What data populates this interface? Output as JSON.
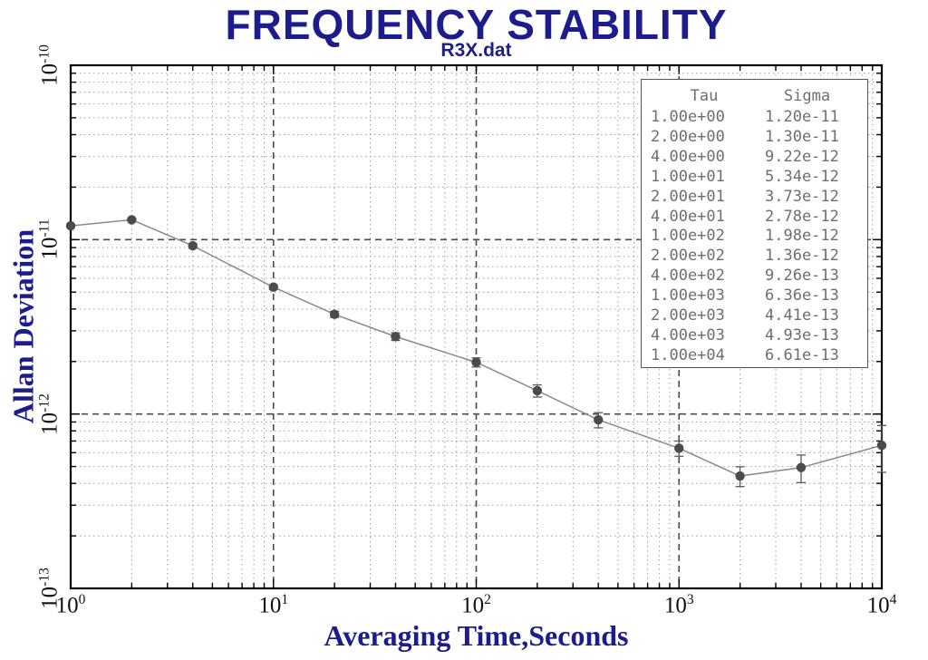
{
  "chart_data": {
    "type": "line",
    "title": "FREQUENCY STABILITY",
    "subtitle": "R3X.dat",
    "xlabel": "Averaging Time,Seconds",
    "ylabel": "Allan Deviation",
    "x_scale": "log",
    "y_scale": "log",
    "xlim": [
      1,
      10000
    ],
    "ylim": [
      1e-13,
      1e-10
    ],
    "x_tick_exponents": [
      0,
      1,
      2,
      3,
      4
    ],
    "y_tick_exponents": [
      -10,
      -11,
      -12,
      -13
    ],
    "grid": {
      "major": "dashed",
      "minor": "dotted"
    },
    "legend_position": "top-right",
    "series": [
      {
        "name": "allan-deviation",
        "marker": "circle",
        "x": [
          1,
          2,
          4,
          10,
          20,
          40,
          100,
          200,
          400,
          1000,
          2000,
          4000,
          10000
        ],
        "y": [
          1.2e-11,
          1.3e-11,
          9.22e-12,
          5.34e-12,
          3.73e-12,
          2.78e-12,
          1.98e-12,
          1.36e-12,
          9.26e-13,
          6.36e-13,
          4.41e-13,
          4.93e-13,
          6.61e-13
        ],
        "y_err_rel": [
          0.02,
          0.02,
          0.03,
          0.03,
          0.04,
          0.05,
          0.06,
          0.08,
          0.1,
          0.1,
          0.13,
          0.18,
          0.3
        ]
      }
    ],
    "legend_table": {
      "headers": [
        "Tau",
        "Sigma"
      ],
      "rows": [
        [
          "1.00e+00",
          "1.20e-11"
        ],
        [
          "2.00e+00",
          "1.30e-11"
        ],
        [
          "4.00e+00",
          "9.22e-12"
        ],
        [
          "1.00e+01",
          "5.34e-12"
        ],
        [
          "2.00e+01",
          "3.73e-12"
        ],
        [
          "4.00e+01",
          "2.78e-12"
        ],
        [
          "1.00e+02",
          "1.98e-12"
        ],
        [
          "2.00e+02",
          "1.36e-12"
        ],
        [
          "4.00e+02",
          "9.26e-13"
        ],
        [
          "1.00e+03",
          "6.36e-13"
        ],
        [
          "2.00e+03",
          "4.41e-13"
        ],
        [
          "4.00e+03",
          "4.93e-13"
        ],
        [
          "1.00e+04",
          "6.61e-13"
        ]
      ]
    }
  },
  "colors": {
    "title": "#1c1c8c",
    "axis_label": "#1c1c8c",
    "tick_label": "#111111",
    "table_text": "#6e6e6e",
    "table_border": "#555555",
    "marker": "#4b4b4b",
    "line": "#8a8a8a",
    "error_bar": "#5a5a5a",
    "grid_major": "#4a4a4a",
    "grid_minor": "#9e9e9e",
    "plot_border": "#000000",
    "background": "#ffffff"
  }
}
